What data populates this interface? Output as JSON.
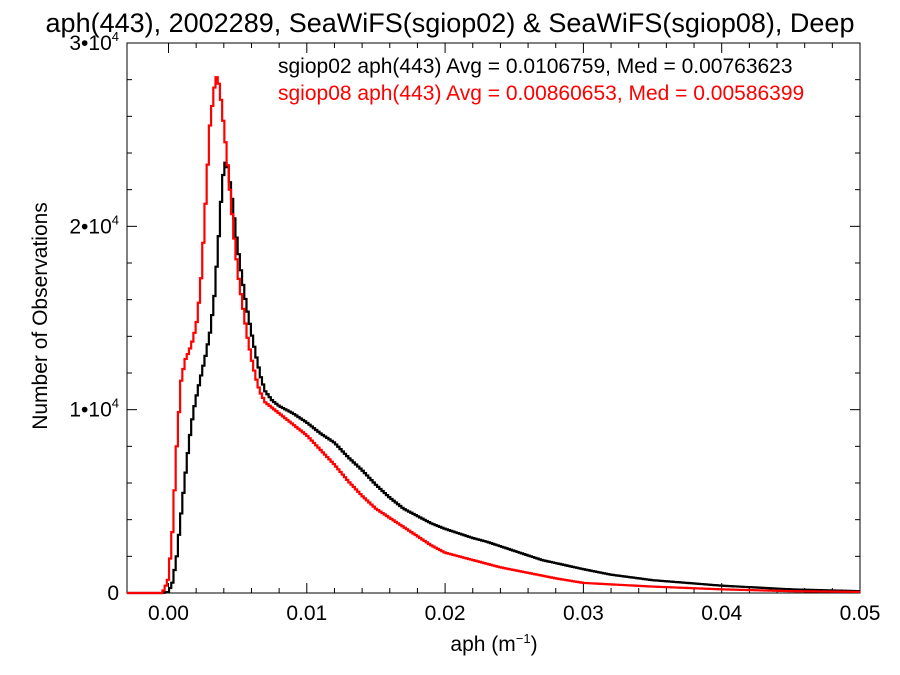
{
  "chart_data": {
    "type": "line",
    "title": "aph(443), 2002289, SeaWiFS(sgiop02) & SeaWiFS(sgiop08), Deep",
    "xlabel": "aph (m",
    "xlabel_sup": "−1",
    "xlabel_tail": ")",
    "ylabel": "Number of Observations",
    "xlim": [
      -0.003,
      0.05
    ],
    "ylim": [
      0,
      30000
    ],
    "xticks": [
      {
        "value": 0.0,
        "label": "0.00"
      },
      {
        "value": 0.01,
        "label": "0.01"
      },
      {
        "value": 0.02,
        "label": "0.02"
      },
      {
        "value": 0.03,
        "label": "0.03"
      },
      {
        "value": 0.04,
        "label": "0.04"
      },
      {
        "value": 0.05,
        "label": "0.05"
      }
    ],
    "yticks": [
      {
        "value": 0,
        "base": "0",
        "exp": ""
      },
      {
        "value": 10000,
        "base": "1•10",
        "exp": "4"
      },
      {
        "value": 20000,
        "base": "2•10",
        "exp": "4"
      },
      {
        "value": 30000,
        "base": "3•10",
        "exp": "4"
      }
    ],
    "grid": false,
    "legend_position": "top-right",
    "series": [
      {
        "name": "sgiop02 aph(443) Avg = 0.0106759, Med = 0.00763623",
        "color": "#000000",
        "points": [
          [
            -0.0025,
            0
          ],
          [
            -0.0005,
            0
          ],
          [
            0.0,
            50
          ],
          [
            0.0003,
            600
          ],
          [
            0.0006,
            2000
          ],
          [
            0.0009,
            4200
          ],
          [
            0.0012,
            6300
          ],
          [
            0.0015,
            8300
          ],
          [
            0.0018,
            9900
          ],
          [
            0.0021,
            11000
          ],
          [
            0.0024,
            12000
          ],
          [
            0.0027,
            13000
          ],
          [
            0.003,
            14200
          ],
          [
            0.0033,
            16000
          ],
          [
            0.0036,
            19000
          ],
          [
            0.0039,
            22500
          ],
          [
            0.0041,
            23500
          ],
          [
            0.0043,
            23200
          ],
          [
            0.0046,
            21500
          ],
          [
            0.0049,
            19500
          ],
          [
            0.0052,
            17800
          ],
          [
            0.0055,
            16300
          ],
          [
            0.0058,
            15000
          ],
          [
            0.0061,
            13800
          ],
          [
            0.0064,
            12700
          ],
          [
            0.0067,
            11700
          ],
          [
            0.007,
            11000
          ],
          [
            0.0075,
            10500
          ],
          [
            0.008,
            10200
          ],
          [
            0.009,
            9800
          ],
          [
            0.01,
            9300
          ],
          [
            0.011,
            8700
          ],
          [
            0.012,
            8200
          ],
          [
            0.013,
            7400
          ],
          [
            0.014,
            6700
          ],
          [
            0.015,
            5900
          ],
          [
            0.016,
            5200
          ],
          [
            0.017,
            4600
          ],
          [
            0.018,
            4200
          ],
          [
            0.019,
            3800
          ],
          [
            0.02,
            3500
          ],
          [
            0.021,
            3250
          ],
          [
            0.022,
            3000
          ],
          [
            0.023,
            2800
          ],
          [
            0.025,
            2300
          ],
          [
            0.027,
            1800
          ],
          [
            0.03,
            1300
          ],
          [
            0.032,
            1000
          ],
          [
            0.035,
            700
          ],
          [
            0.04,
            400
          ],
          [
            0.045,
            200
          ],
          [
            0.05,
            100
          ]
        ]
      },
      {
        "name": "sgiop08 aph(443) Avg = 0.00860653, Med = 0.00586399",
        "color": "#ff0000",
        "points": [
          [
            -0.0025,
            0
          ],
          [
            -0.0005,
            0
          ],
          [
            -0.0003,
            200
          ],
          [
            0.0,
            800
          ],
          [
            0.0003,
            3500
          ],
          [
            0.0006,
            8000
          ],
          [
            0.0009,
            11500
          ],
          [
            0.0012,
            12700
          ],
          [
            0.0015,
            13200
          ],
          [
            0.0018,
            13900
          ],
          [
            0.0021,
            15000
          ],
          [
            0.0024,
            17500
          ],
          [
            0.0027,
            21500
          ],
          [
            0.003,
            25500
          ],
          [
            0.0033,
            27500
          ],
          [
            0.0035,
            28200
          ],
          [
            0.0037,
            27600
          ],
          [
            0.0039,
            26200
          ],
          [
            0.0042,
            24000
          ],
          [
            0.0045,
            21500
          ],
          [
            0.0048,
            19000
          ],
          [
            0.0051,
            17000
          ],
          [
            0.0054,
            15500
          ],
          [
            0.0057,
            14000
          ],
          [
            0.006,
            12800
          ],
          [
            0.0063,
            11800
          ],
          [
            0.0066,
            11000
          ],
          [
            0.007,
            10400
          ],
          [
            0.008,
            9800
          ],
          [
            0.009,
            9200
          ],
          [
            0.01,
            8600
          ],
          [
            0.011,
            7800
          ],
          [
            0.012,
            7000
          ],
          [
            0.013,
            6100
          ],
          [
            0.014,
            5300
          ],
          [
            0.015,
            4600
          ],
          [
            0.016,
            4100
          ],
          [
            0.017,
            3600
          ],
          [
            0.018,
            3100
          ],
          [
            0.019,
            2600
          ],
          [
            0.02,
            2200
          ],
          [
            0.022,
            1800
          ],
          [
            0.024,
            1400
          ],
          [
            0.026,
            1100
          ],
          [
            0.028,
            800
          ],
          [
            0.03,
            550
          ],
          [
            0.035,
            350
          ],
          [
            0.04,
            200
          ],
          [
            0.045,
            100
          ],
          [
            0.05,
            60
          ]
        ]
      }
    ]
  }
}
